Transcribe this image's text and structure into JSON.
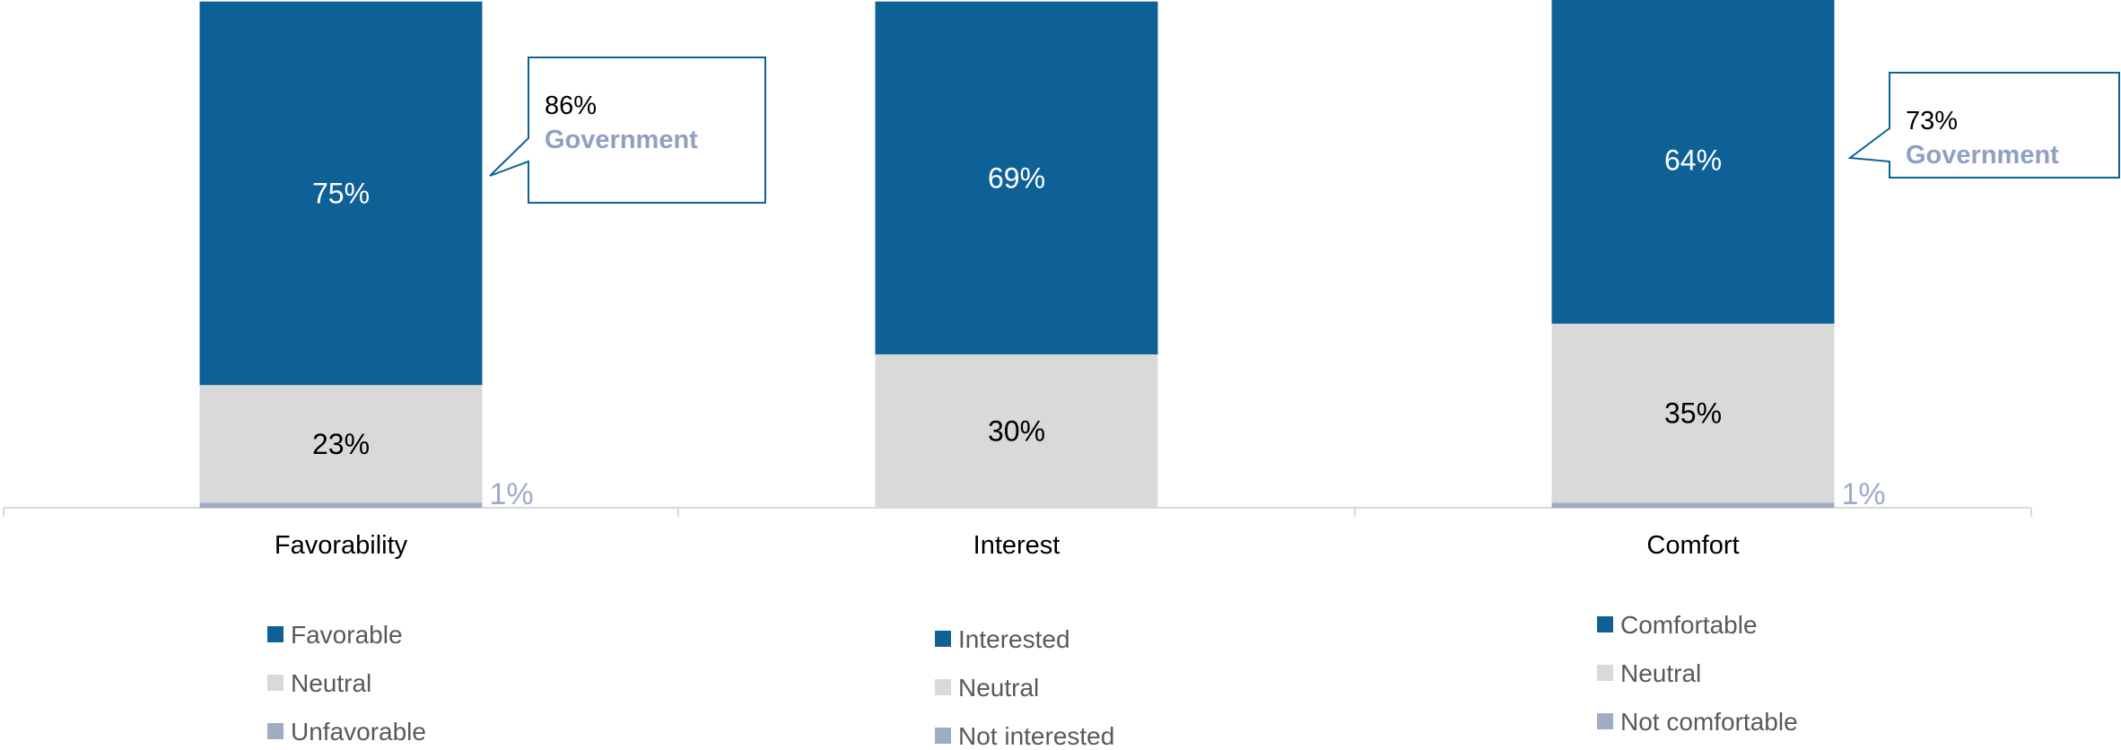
{
  "chart_data": {
    "type": "bar",
    "stacked": true,
    "categories": [
      "Favorability",
      "Interest",
      "Comfort"
    ],
    "ylim": [
      0,
      100
    ],
    "grid": false,
    "segments": [
      {
        "values": [
          1,
          0,
          1
        ],
        "labels": [
          "1%",
          "",
          "1%"
        ],
        "color": "#a0abc4"
      },
      {
        "values": [
          23,
          30,
          35
        ],
        "labels": [
          "23%",
          "30%",
          "35%"
        ],
        "color": "#d9d9d9"
      },
      {
        "values": [
          75,
          69,
          64
        ],
        "labels": [
          "75%",
          "69%",
          "64%"
        ],
        "color": "#0e6196"
      }
    ],
    "callouts": [
      {
        "category": "Favorability",
        "value": "86%",
        "label": "Government"
      },
      {
        "category": "Comfort",
        "value": "73%",
        "label": "Government"
      }
    ],
    "legends": [
      {
        "category": "Favorability",
        "entries": [
          "Favorable",
          "Neutral",
          "Unfavorable"
        ]
      },
      {
        "category": "Interest",
        "entries": [
          "Interested",
          "Neutral",
          "Not interested"
        ]
      },
      {
        "category": "Comfort",
        "entries": [
          "Comfortable",
          "Neutral",
          "Not comfortable"
        ]
      }
    ]
  }
}
